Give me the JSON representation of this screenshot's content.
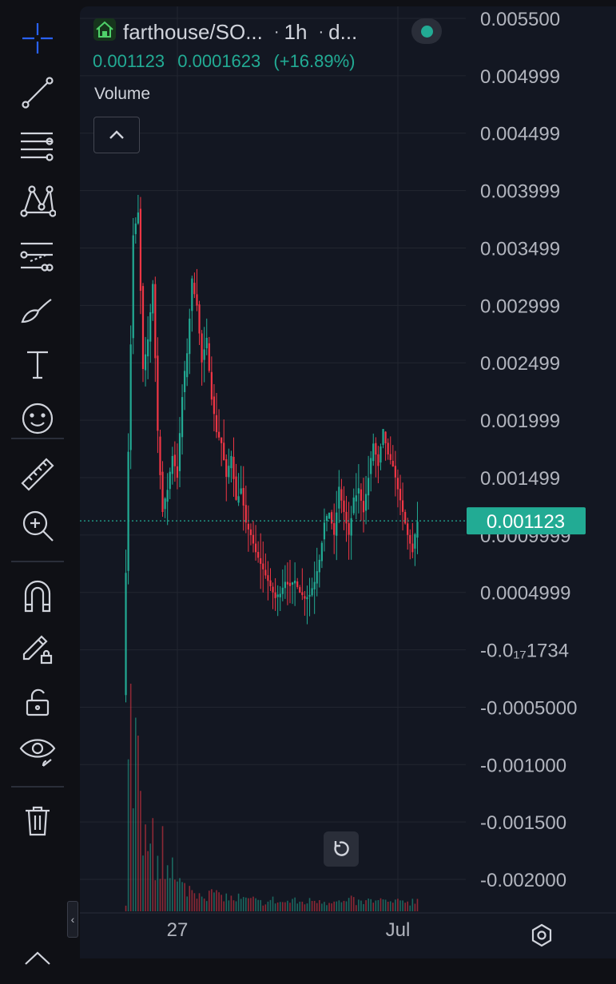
{
  "legend": {
    "symbol": "farthouse/SO...",
    "interval": "1h",
    "exchange": "d...",
    "separator": "·",
    "last_price": "0.001123",
    "change": "0.0001623",
    "change_percent": "(+16.89%)",
    "volume_label": "Volume"
  },
  "toolbar": {
    "tools": [
      "crosshair-icon",
      "trend-line-icon",
      "fib-retracement-icon",
      "pattern-icon",
      "prediction-icon",
      "brush-icon",
      "text-icon",
      "emoji-icon",
      "ruler-icon",
      "zoom-in-icon",
      "magnet-icon",
      "lock-drawing-icon",
      "lock-all-icon",
      "eye-icon",
      "trash-icon"
    ]
  },
  "colors": {
    "up": "#22ab94",
    "down": "#f23645",
    "background": "#131722",
    "grid": "#222630",
    "axis_text": "#b2b5be",
    "price_tag": "#22ab94"
  },
  "chart_data": {
    "type": "candlestick",
    "interval": "1h",
    "y_axis_labels": [
      "0.005500",
      "0.004999",
      "0.004499",
      "0.003999",
      "0.003499",
      "0.002999",
      "0.002499",
      "0.001999",
      "0.001499",
      "0.0009999",
      "0.0004999",
      "-0.0₁₇1734",
      "-0.0005000",
      "-0.001000",
      "-0.001500",
      "-0.002000"
    ],
    "x_axis_labels": [
      "27",
      "Jul"
    ],
    "ylim": [
      -0.00215,
      0.0056
    ],
    "current_price": {
      "label": "0.001123",
      "value": 0.001123
    },
    "price_series": [
      [
        0,
        -0.0002
      ],
      [
        2,
        0.0018
      ],
      [
        4,
        0.0036
      ],
      [
        6,
        0.0038
      ],
      [
        8,
        0.0024
      ],
      [
        10,
        0.0027
      ],
      [
        12,
        0.0032
      ],
      [
        14,
        0.0019
      ],
      [
        16,
        0.0012
      ],
      [
        18,
        0.0014
      ],
      [
        20,
        0.0017
      ],
      [
        22,
        0.0015
      ],
      [
        24,
        0.0022
      ],
      [
        26,
        0.0026
      ],
      [
        28,
        0.0032
      ],
      [
        30,
        0.003
      ],
      [
        32,
        0.0025
      ],
      [
        34,
        0.0027
      ],
      [
        36,
        0.0022
      ],
      [
        38,
        0.0019
      ],
      [
        40,
        0.0018
      ],
      [
        42,
        0.0015
      ],
      [
        44,
        0.0017
      ],
      [
        46,
        0.0013
      ],
      [
        48,
        0.0014
      ],
      [
        50,
        0.0011
      ],
      [
        52,
        0.001
      ],
      [
        54,
        0.00085
      ],
      [
        56,
        0.00075
      ],
      [
        58,
        0.00065
      ],
      [
        60,
        0.00055
      ],
      [
        62,
        0.00045
      ],
      [
        64,
        0.0005
      ],
      [
        66,
        0.0006
      ],
      [
        68,
        0.00055
      ],
      [
        70,
        0.0006
      ],
      [
        72,
        0.0005
      ],
      [
        74,
        0.00045
      ],
      [
        76,
        0.00048
      ],
      [
        78,
        0.0006
      ],
      [
        80,
        0.0008
      ],
      [
        82,
        0.0011
      ],
      [
        84,
        0.0012
      ],
      [
        86,
        0.001
      ],
      [
        88,
        0.0014
      ],
      [
        90,
        0.0012
      ],
      [
        92,
        0.001
      ],
      [
        94,
        0.0013
      ],
      [
        96,
        0.0014
      ],
      [
        98,
        0.0012
      ],
      [
        100,
        0.0015
      ],
      [
        102,
        0.0018
      ],
      [
        104,
        0.0016
      ],
      [
        106,
        0.0019
      ],
      [
        108,
        0.0017
      ],
      [
        110,
        0.0016
      ],
      [
        112,
        0.0014
      ],
      [
        114,
        0.0012
      ],
      [
        116,
        0.001
      ],
      [
        118,
        0.00085
      ],
      [
        120,
        0.00112
      ]
    ],
    "volume_series": [
      [
        0,
        0.02
      ],
      [
        1,
        0.5
      ],
      [
        2,
        1.0
      ],
      [
        3,
        0.35
      ],
      [
        4,
        0.72
      ],
      [
        5,
        0.6
      ],
      [
        6,
        0.45
      ],
      [
        7,
        0.35
      ],
      [
        8,
        0.28
      ],
      [
        9,
        0.4
      ],
      [
        10,
        0.22
      ],
      [
        11,
        0.3
      ],
      [
        12,
        0.18
      ],
      [
        13,
        0.25
      ],
      [
        14,
        0.2
      ],
      [
        15,
        0.38
      ],
      [
        16,
        0.22
      ],
      [
        17,
        0.3
      ],
      [
        18,
        0.15
      ],
      [
        19,
        0.2
      ],
      [
        20,
        0.12
      ],
      [
        22,
        0.12
      ],
      [
        24,
        0.1
      ],
      [
        26,
        0.1
      ],
      [
        28,
        0.08
      ],
      [
        30,
        0.09
      ],
      [
        32,
        0.08
      ],
      [
        34,
        0.07
      ],
      [
        36,
        0.09
      ],
      [
        38,
        0.06
      ],
      [
        40,
        0.07
      ],
      [
        42,
        0.06
      ],
      [
        44,
        0.05
      ],
      [
        46,
        0.06
      ],
      [
        48,
        0.05
      ],
      [
        50,
        0.05
      ],
      [
        52,
        0.05
      ],
      [
        54,
        0.04
      ],
      [
        56,
        0.04
      ],
      [
        58,
        0.04
      ],
      [
        60,
        0.05
      ],
      [
        62,
        0.04
      ],
      [
        64,
        0.04
      ],
      [
        66,
        0.04
      ],
      [
        68,
        0.05
      ],
      [
        70,
        0.04
      ],
      [
        72,
        0.04
      ],
      [
        74,
        0.04
      ],
      [
        76,
        0.05
      ],
      [
        78,
        0.05
      ],
      [
        80,
        0.05
      ],
      [
        82,
        0.04
      ],
      [
        84,
        0.05
      ],
      [
        86,
        0.04
      ],
      [
        88,
        0.04
      ],
      [
        90,
        0.04
      ],
      [
        92,
        0.05
      ],
      [
        94,
        0.04
      ],
      [
        96,
        0.04
      ],
      [
        98,
        0.04
      ],
      [
        100,
        0.05
      ],
      [
        102,
        0.04
      ],
      [
        104,
        0.05
      ],
      [
        106,
        0.04
      ],
      [
        108,
        0.04
      ],
      [
        110,
        0.04
      ],
      [
        112,
        0.04
      ],
      [
        114,
        0.05
      ],
      [
        116,
        0.04
      ],
      [
        118,
        0.05
      ],
      [
        120,
        0.05
      ]
    ]
  }
}
